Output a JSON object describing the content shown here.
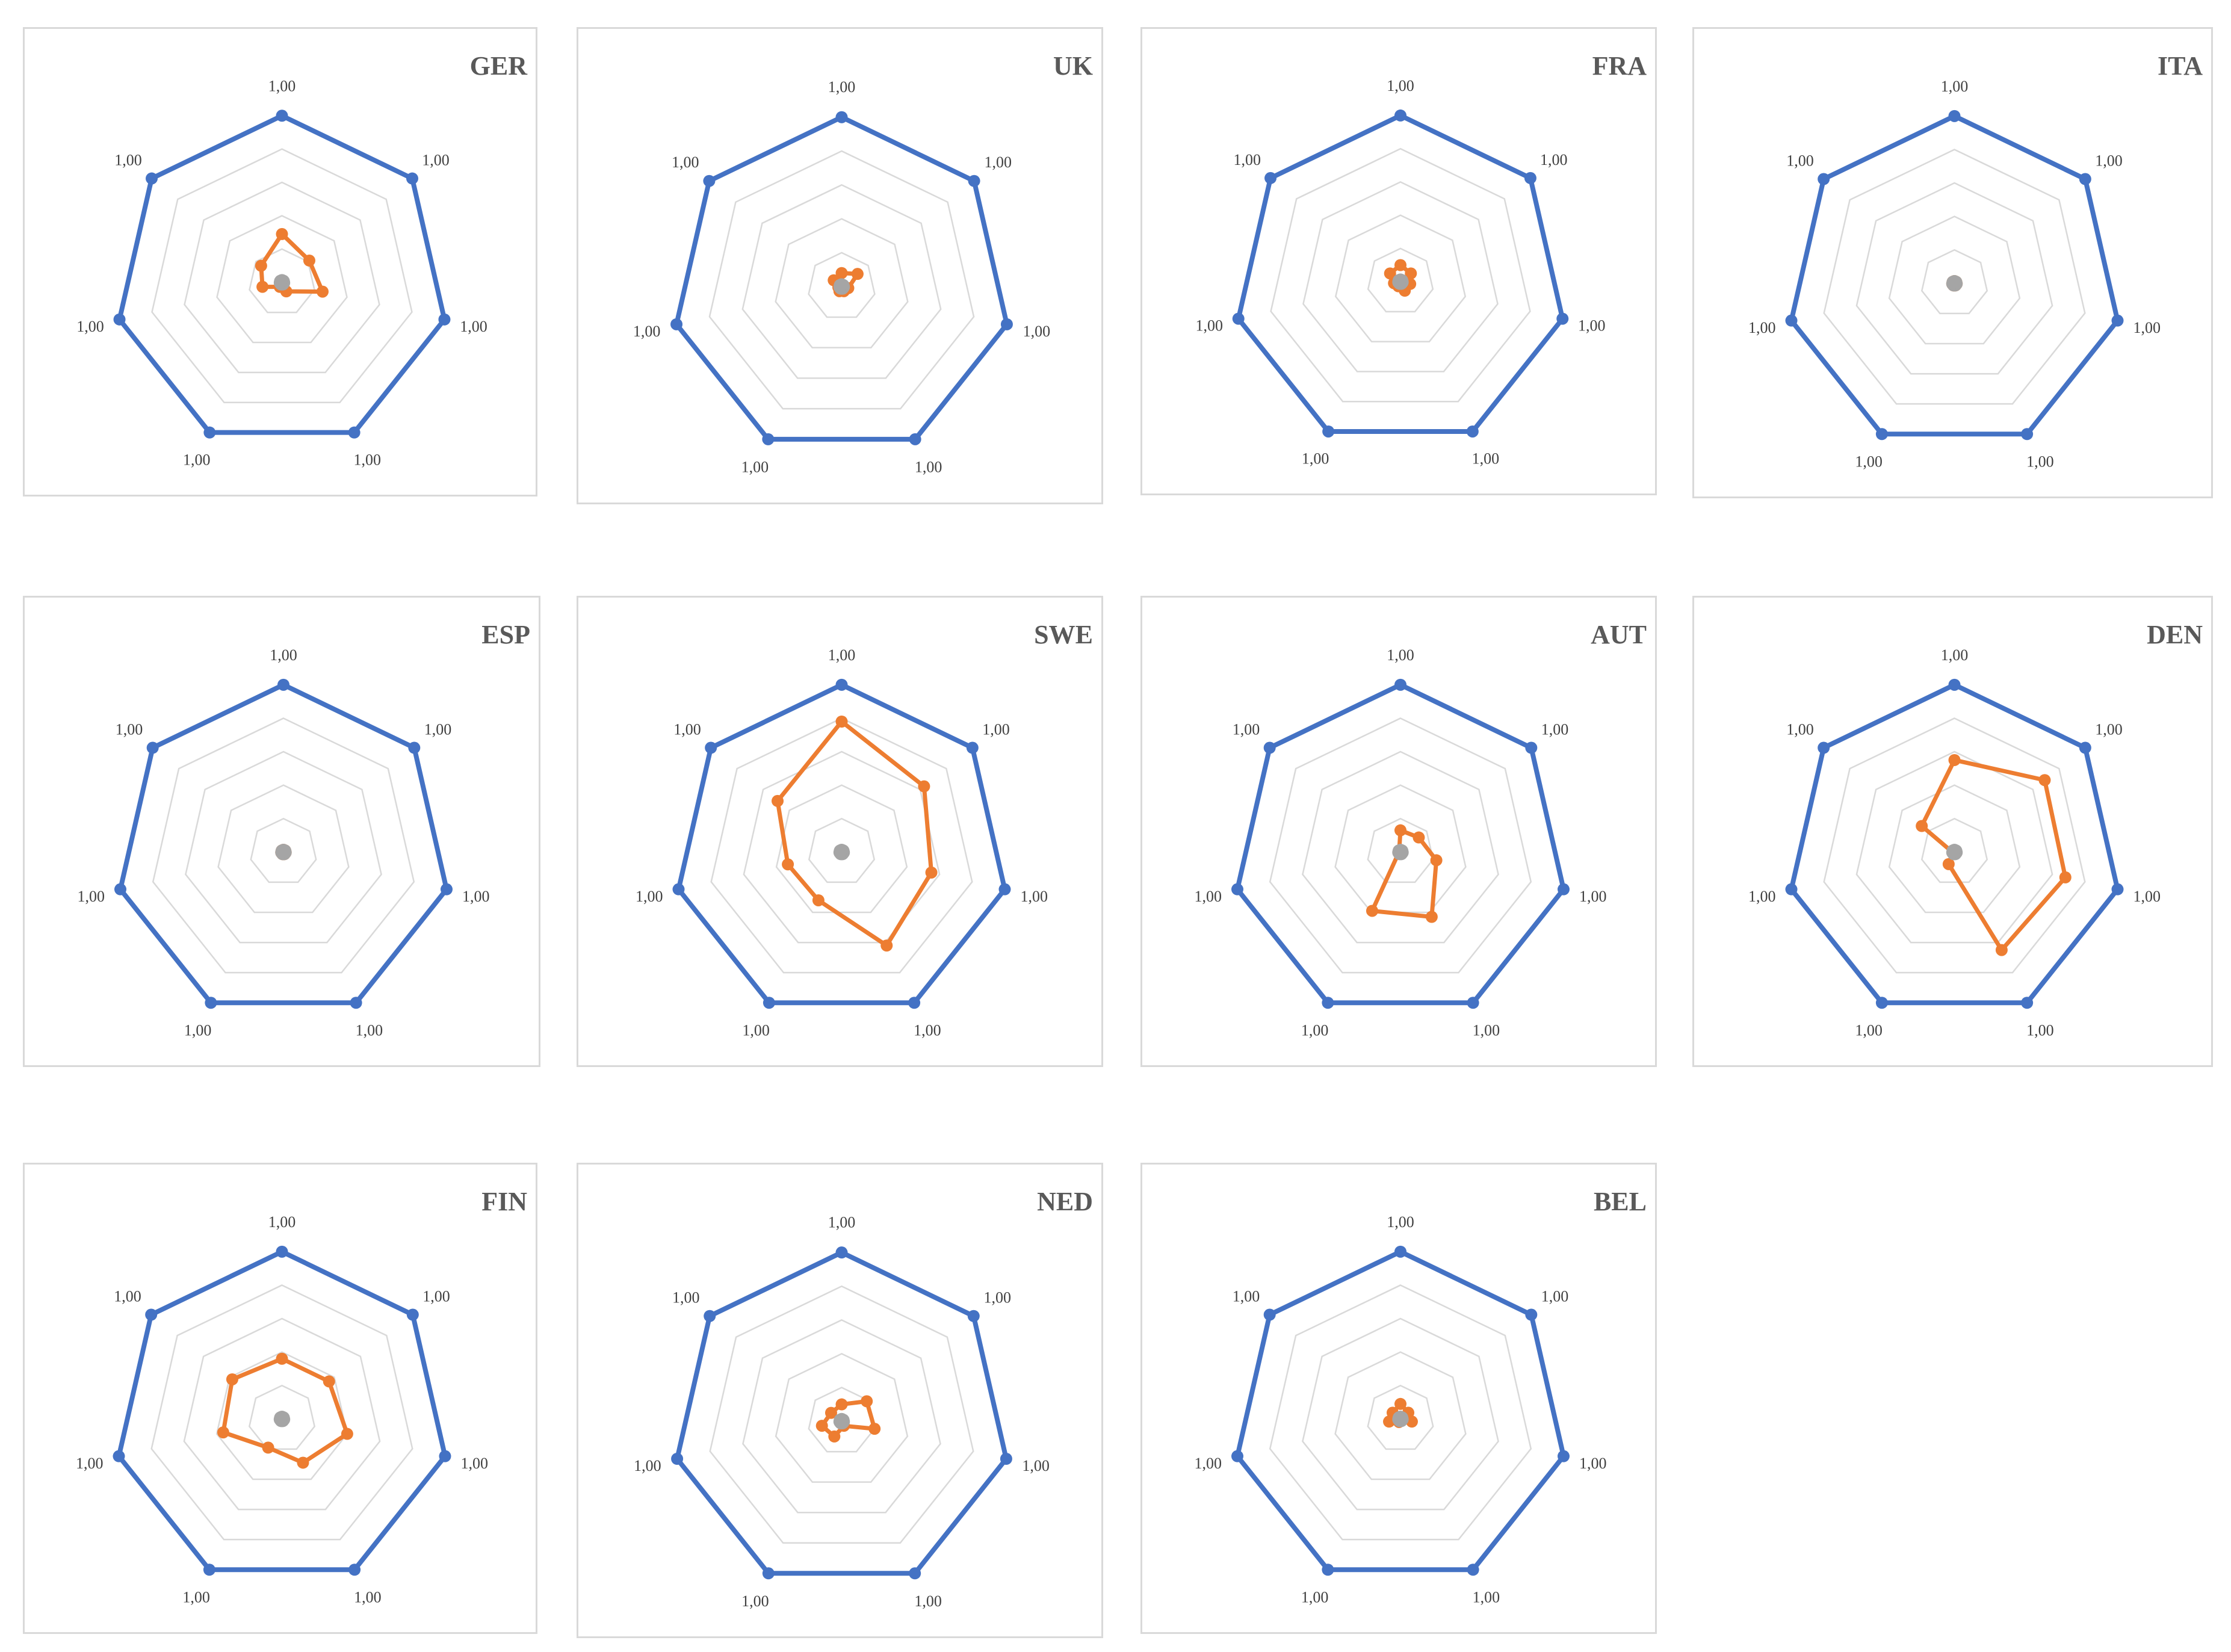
{
  "chart_data": [
    {
      "type": "radar",
      "title": "GER",
      "axis_labels": [
        "1,00",
        "1,00",
        "1,00",
        "1,00",
        "1,00",
        "1,00",
        "1,00"
      ],
      "rlim": [
        0,
        1
      ],
      "grid": true,
      "series": [
        {
          "values": [
            1,
            1,
            1,
            1,
            1,
            1,
            1
          ],
          "color": "#4472c4"
        },
        {
          "values": [
            0.29,
            0.21,
            0.25,
            0.06,
            0.03,
            0.12,
            0.16
          ],
          "color": "#ed7d31"
        },
        {
          "values": [
            0.01,
            0.01,
            0.01,
            0.01,
            0.01,
            0.01,
            0.01
          ],
          "color": "#a5a5a5"
        }
      ]
    },
    {
      "type": "radar",
      "title": "UK",
      "axis_labels": [
        "1,00",
        "1,00",
        "1,00",
        "1,00",
        "1,00",
        "1,00",
        "1,00"
      ],
      "rlim": [
        0,
        1
      ],
      "grid": true,
      "series": [
        {
          "values": [
            1,
            1,
            1,
            1,
            1,
            1,
            1
          ],
          "color": "#4472c4"
        },
        {
          "values": [
            0.08,
            0.12,
            0.04,
            0.03,
            0.03,
            0.02,
            0.06
          ],
          "color": "#ed7d31"
        },
        {
          "values": [
            0.01,
            0.01,
            0.01,
            0.01,
            0.01,
            0.01,
            0.01
          ],
          "color": "#a5a5a5"
        }
      ]
    },
    {
      "type": "radar",
      "title": "FRA",
      "axis_labels": [
        "1,00",
        "1,00",
        "1,00",
        "1,00",
        "1,00",
        "1,00",
        "1,00"
      ],
      "rlim": [
        0,
        1
      ],
      "grid": true,
      "series": [
        {
          "values": [
            0.1,
            0.08,
            0.06,
            0.06,
            0.03,
            0.04,
            0.08
          ],
          "color": "#ed7d31"
        },
        {
          "values": [
            1,
            1,
            1,
            1,
            1,
            1,
            1
          ],
          "color": "#4472c4"
        },
        {
          "values": [
            0.01,
            0.01,
            0.01,
            0.01,
            0.01,
            0.01,
            0.01
          ],
          "color": "#a5a5a5"
        }
      ]
    },
    {
      "type": "radar",
      "title": "ITA",
      "axis_labels": [
        "1,00",
        "1,00",
        "1,00",
        "1,00",
        "1,00",
        "1,00",
        "1,00"
      ],
      "rlim": [
        0,
        1
      ],
      "grid": true,
      "series": [
        {
          "values": [
            1,
            1,
            1,
            1,
            1,
            1,
            1
          ],
          "color": "#4472c4"
        },
        {
          "values": [
            0.01,
            0.01,
            0.01,
            0.01,
            0.01,
            0.01,
            0.01
          ],
          "color": "#ed7d31"
        },
        {
          "values": [
            0.01,
            0.01,
            0.01,
            0.01,
            0.01,
            0.01,
            0.01
          ],
          "color": "#a5a5a5"
        }
      ]
    },
    {
      "type": "radar",
      "title": "ESP",
      "axis_labels": [
        "1,00",
        "1,00",
        "1,00",
        "1,00",
        "1,00",
        "1,00",
        "1,00"
      ],
      "rlim": [
        0,
        1
      ],
      "grid": true,
      "series": [
        {
          "values": [
            1,
            1,
            1,
            1,
            1,
            1,
            1
          ],
          "color": "#4472c4"
        },
        {
          "values": [
            0.01,
            0.01,
            0.01,
            0.01,
            0.01,
            0.01,
            0.01
          ],
          "color": "#ed7d31"
        },
        {
          "values": [
            0.01,
            0.01,
            0.01,
            0.01,
            0.01,
            0.01,
            0.01
          ],
          "color": "#a5a5a5"
        }
      ]
    },
    {
      "type": "radar",
      "title": "SWE",
      "axis_labels": [
        "1,00",
        "1,00",
        "1,00",
        "1,00",
        "1,00",
        "1,00",
        "1,00"
      ],
      "rlim": [
        0,
        1
      ],
      "grid": true,
      "series": [
        {
          "values": [
            1,
            1,
            1,
            1,
            1,
            1,
            1
          ],
          "color": "#4472c4"
        },
        {
          "values": [
            0.78,
            0.63,
            0.55,
            0.62,
            0.32,
            0.33,
            0.49
          ],
          "color": "#ed7d31"
        },
        {
          "values": [
            0.01,
            0.01,
            0.01,
            0.01,
            0.01,
            0.01,
            0.01
          ],
          "color": "#a5a5a5"
        }
      ]
    },
    {
      "type": "radar",
      "title": "AUT",
      "axis_labels": [
        "1,00",
        "1,00",
        "1,00",
        "1,00",
        "1,00",
        "1,00",
        "1,00"
      ],
      "rlim": [
        0,
        1
      ],
      "grid": true,
      "series": [
        {
          "values": [
            1,
            1,
            1,
            1,
            1,
            1,
            1
          ],
          "color": "#4472c4"
        },
        {
          "values": [
            0.13,
            0.14,
            0.22,
            0.43,
            0.39,
            0.01,
            0.01
          ],
          "color": "#ed7d31"
        },
        {
          "values": [
            0.01,
            0.01,
            0.01,
            0.01,
            0.01,
            0.01,
            0.01
          ],
          "color": "#a5a5a5"
        }
      ]
    },
    {
      "type": "radar",
      "title": "DEN",
      "axis_labels": [
        "1,00",
        "1,00",
        "1,00",
        "1,00",
        "1,00",
        "1,00",
        "1,00"
      ],
      "rlim": [
        0,
        1
      ],
      "grid": true,
      "series": [
        {
          "values": [
            1,
            1,
            1,
            1,
            1,
            1,
            1
          ],
          "color": "#4472c4"
        },
        {
          "values": [
            0.55,
            0.69,
            0.68,
            0.65,
            0.08,
            0.01,
            0.25
          ],
          "color": "#ed7d31"
        },
        {
          "values": [
            0.01,
            0.01,
            0.01,
            0.01,
            0.01,
            0.01,
            0.01
          ],
          "color": "#a5a5a5"
        }
      ]
    },
    {
      "type": "radar",
      "title": "FIN",
      "axis_labels": [
        "1,00",
        "1,00",
        "1,00",
        "1,00",
        "1,00",
        "1,00",
        "1,00"
      ],
      "rlim": [
        0,
        1
      ],
      "grid": true,
      "series": [
        {
          "values": [
            1,
            1,
            1,
            1,
            1,
            1,
            1
          ],
          "color": "#4472c4"
        },
        {
          "values": [
            0.36,
            0.36,
            0.4,
            0.29,
            0.19,
            0.36,
            0.38
          ],
          "color": "#ed7d31"
        },
        {
          "values": [
            0.01,
            0.01,
            0.01,
            0.01,
            0.01,
            0.01,
            0.01
          ],
          "color": "#a5a5a5"
        }
      ]
    },
    {
      "type": "radar",
      "title": "NED",
      "axis_labels": [
        "1,00",
        "1,00",
        "1,00",
        "1,00",
        "1,00",
        "1,00",
        "1,00"
      ],
      "rlim": [
        0,
        1
      ],
      "grid": true,
      "series": [
        {
          "values": [
            1,
            1,
            1,
            1,
            1,
            1,
            1
          ],
          "color": "#4472c4"
        },
        {
          "values": [
            0.1,
            0.19,
            0.2,
            0.03,
            0.1,
            0.12,
            0.08
          ],
          "color": "#ed7d31"
        },
        {
          "values": [
            0.01,
            0.01,
            0.01,
            0.01,
            0.01,
            0.01,
            0.01
          ],
          "color": "#a5a5a5"
        }
      ]
    },
    {
      "type": "radar",
      "title": "BEL",
      "axis_labels": [
        "1,00",
        "1,00",
        "1,00",
        "1,00",
        "1,00",
        "1,00",
        "1,00"
      ],
      "rlim": [
        0,
        1
      ],
      "grid": true,
      "series": [
        {
          "values": [
            1,
            1,
            1,
            1,
            1,
            1,
            1
          ],
          "color": "#4472c4"
        },
        {
          "values": [
            0.09,
            0.06,
            0.07,
            0.01,
            0.02,
            0.07,
            0.06
          ],
          "color": "#ed7d31"
        },
        {
          "values": [
            0.01,
            0.01,
            0.01,
            0.01,
            0.01,
            0.01,
            0.01
          ],
          "color": "#a5a5a5"
        }
      ]
    }
  ]
}
